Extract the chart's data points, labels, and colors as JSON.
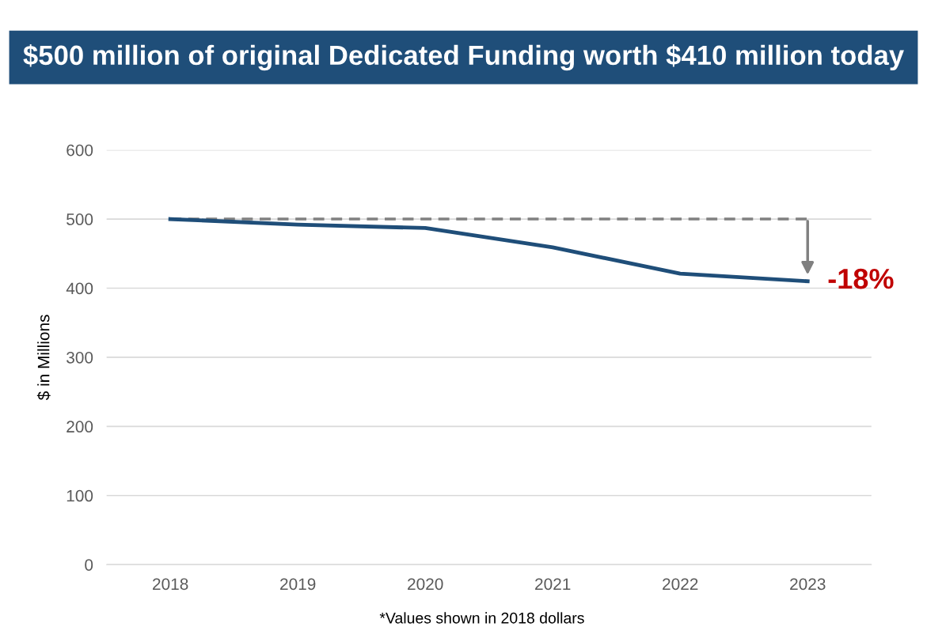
{
  "chart_data": {
    "type": "line",
    "title": "$500 million of original Dedicated Funding worth $410 million today",
    "ylabel": "$ in Millions",
    "categories": [
      "2018",
      "2019",
      "2020",
      "2021",
      "2022",
      "2023"
    ],
    "series": [
      {
        "color": "#1f4e79",
        "values": [
          500,
          492,
          487,
          459,
          421,
          410
        ]
      }
    ],
    "ylim": [
      0,
      600
    ],
    "yticks": [
      0,
      100,
      200,
      300,
      400,
      500,
      600
    ],
    "grid": "y",
    "marker": "none",
    "line_style": "solid",
    "ref_lines": [
      {
        "axis": "y",
        "value": 500,
        "color": "#808080",
        "line_style": "dashed"
      }
    ],
    "annotations": [
      {
        "text": "-18%",
        "x": "2023",
        "y": 410
      },
      "*Values shown in 2018 dollars"
    ]
  }
}
